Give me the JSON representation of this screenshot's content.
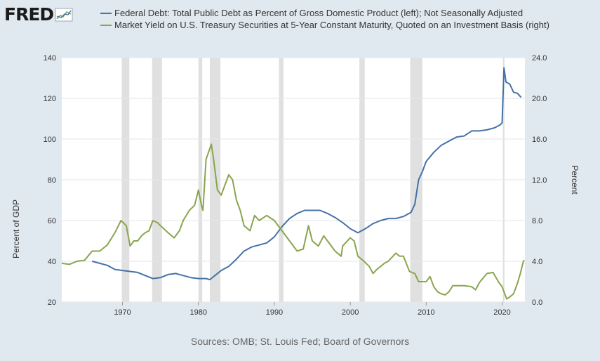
{
  "brand": {
    "name": "FRED",
    "icon": "fred-chart-icon"
  },
  "legend": [
    {
      "label": "Federal Debt: Total Public Debt as Percent of Gross Domestic Product (left); Not Seasonally Adjusted",
      "color": "#4572a7"
    },
    {
      "label": "Market Yield on U.S. Treasury Securities at 5-Year Constant Maturity, Quoted on an Investment Basis (right)",
      "color": "#89a54e"
    }
  ],
  "sources": "Sources: OMB; St. Louis Fed; Board of Governors",
  "chart_data": {
    "type": "line",
    "xlim": [
      1962.0,
      2023.0
    ],
    "x_ticks": [
      1970,
      1980,
      1990,
      2000,
      2010,
      2020
    ],
    "ylabel_left": "Percent of GDP",
    "ylabel_right": "Percent",
    "ylim_left": [
      20,
      140
    ],
    "ylim_right": [
      0.0,
      24.0
    ],
    "y_ticks_left": [
      "20",
      "40",
      "60",
      "80",
      "100",
      "120",
      "140"
    ],
    "y_ticks_right": [
      "0.0",
      "4.0",
      "8.0",
      "12.0",
      "16.0",
      "20.0",
      "24.0"
    ],
    "grid": true,
    "recessions": [
      [
        1969.9,
        1970.9
      ],
      [
        1973.9,
        1975.2
      ],
      [
        1980.0,
        1980.5
      ],
      [
        1981.5,
        1982.9
      ],
      [
        1990.6,
        1991.2
      ],
      [
        2001.2,
        2001.9
      ],
      [
        2007.9,
        2009.5
      ],
      [
        2020.1,
        2020.3
      ]
    ],
    "series": [
      {
        "axis": "left",
        "color": "#4572a7",
        "x": [
          1966.0,
          1967.0,
          1968.0,
          1969.0,
          1970.0,
          1971.0,
          1972.0,
          1973.0,
          1974.0,
          1975.0,
          1976.0,
          1977.0,
          1978.0,
          1979.0,
          1980.0,
          1981.0,
          1981.5,
          1982.0,
          1983.0,
          1984.0,
          1985.0,
          1986.0,
          1987.0,
          1988.0,
          1989.0,
          1990.0,
          1991.0,
          1992.0,
          1993.0,
          1994.0,
          1995.0,
          1996.0,
          1997.0,
          1998.0,
          1999.0,
          2000.0,
          2001.0,
          2002.0,
          2003.0,
          2004.0,
          2005.0,
          2006.0,
          2007.0,
          2008.0,
          2008.5,
          2009.0,
          2009.5,
          2010.0,
          2011.0,
          2012.0,
          2013.0,
          2014.0,
          2015.0,
          2016.0,
          2017.0,
          2018.0,
          2019.0,
          2019.75,
          2020.0,
          2020.25,
          2020.5,
          2021.0,
          2021.5,
          2022.0,
          2022.5
        ],
        "values": [
          40.0,
          39.0,
          38.0,
          36.0,
          35.5,
          35.0,
          34.5,
          33.0,
          31.5,
          32.0,
          33.5,
          34.0,
          33.0,
          32.0,
          31.5,
          31.5,
          31.0,
          32.5,
          35.5,
          37.5,
          41.0,
          45.0,
          47.0,
          48.0,
          49.0,
          52.0,
          57.0,
          61.0,
          63.5,
          65.0,
          65.0,
          65.0,
          63.5,
          61.5,
          59.0,
          56.0,
          54.0,
          56.0,
          58.5,
          60.0,
          61.0,
          61.0,
          62.0,
          64.0,
          68.0,
          80.0,
          84.0,
          89.0,
          93.5,
          97.0,
          99.0,
          101.0,
          101.5,
          104.0,
          104.0,
          104.5,
          105.5,
          107.0,
          108.0,
          135.0,
          128.0,
          127.0,
          123.0,
          122.5,
          120.5
        ]
      },
      {
        "axis": "right",
        "color": "#89a54e",
        "x": [
          1962.0,
          1963.0,
          1964.0,
          1965.0,
          1966.0,
          1967.0,
          1968.0,
          1969.0,
          1969.8,
          1970.5,
          1971.0,
          1971.5,
          1972.0,
          1972.5,
          1973.0,
          1973.5,
          1974.0,
          1974.6,
          1975.0,
          1976.0,
          1976.8,
          1977.5,
          1978.0,
          1978.8,
          1979.5,
          1980.0,
          1980.4,
          1980.6,
          1981.0,
          1981.7,
          1982.0,
          1982.5,
          1983.0,
          1984.0,
          1984.5,
          1985.0,
          1985.5,
          1986.0,
          1986.8,
          1987.4,
          1988.0,
          1989.0,
          1990.0,
          1991.0,
          1992.0,
          1993.0,
          1993.8,
          1994.5,
          1995.0,
          1995.8,
          1996.5,
          1997.0,
          1998.0,
          1998.8,
          1999.0,
          2000.0,
          2000.5,
          2001.0,
          2001.8,
          2002.5,
          2003.0,
          2003.5,
          2004.0,
          2004.5,
          2005.0,
          2006.0,
          2006.5,
          2007.0,
          2007.8,
          2008.5,
          2009.0,
          2010.0,
          2010.5,
          2011.0,
          2011.5,
          2012.0,
          2012.5,
          2013.0,
          2013.5,
          2014.0,
          2015.0,
          2016.0,
          2016.5,
          2017.0,
          2018.0,
          2018.8,
          2019.5,
          2020.0,
          2020.6,
          2021.0,
          2021.5,
          2022.0,
          2022.4,
          2022.8,
          2022.95
        ],
        "values": [
          3.8,
          3.7,
          4.0,
          4.1,
          5.0,
          5.0,
          5.6,
          6.8,
          8.0,
          7.5,
          5.5,
          6.0,
          6.0,
          6.5,
          6.8,
          7.0,
          8.0,
          7.8,
          7.5,
          6.8,
          6.3,
          7.0,
          8.0,
          9.0,
          9.5,
          11.0,
          9.5,
          9.0,
          14.0,
          15.5,
          14.0,
          11.0,
          10.5,
          12.5,
          12.0,
          10.0,
          9.0,
          7.5,
          7.0,
          8.5,
          8.0,
          8.5,
          8.0,
          7.0,
          6.0,
          5.0,
          5.2,
          7.5,
          6.0,
          5.5,
          6.5,
          6.0,
          5.0,
          4.5,
          5.5,
          6.3,
          6.0,
          4.5,
          4.0,
          3.5,
          2.8,
          3.2,
          3.5,
          3.8,
          4.0,
          4.8,
          4.5,
          4.5,
          3.0,
          2.8,
          2.0,
          2.0,
          2.5,
          1.5,
          1.0,
          0.8,
          0.7,
          1.0,
          1.6,
          1.6,
          1.6,
          1.5,
          1.2,
          1.9,
          2.8,
          2.9,
          2.0,
          1.5,
          0.3,
          0.5,
          0.8,
          1.8,
          2.8,
          4.0,
          4.1
        ]
      }
    ]
  }
}
